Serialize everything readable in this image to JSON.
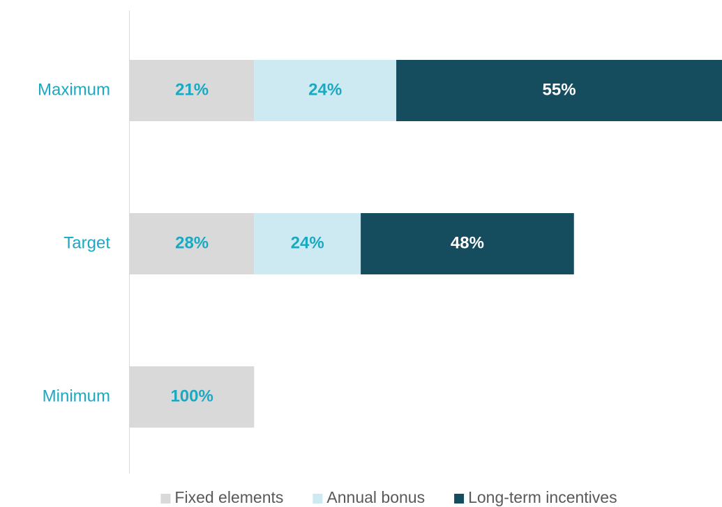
{
  "chart_data": {
    "type": "bar",
    "orientation": "horizontal",
    "stacked": true,
    "categories": [
      "Maximum",
      "Target",
      "Minimum"
    ],
    "series": [
      {
        "name": "Fixed elements",
        "color": "#d9d9d9",
        "values": [
          21,
          28,
          100
        ],
        "value_labels": [
          "21%",
          "28%",
          "100%"
        ]
      },
      {
        "name": "Annual bonus",
        "color": "#cdeaf2",
        "values": [
          24,
          24,
          null
        ],
        "value_labels": [
          "24%",
          "24%",
          null
        ]
      },
      {
        "name": "Long-term incentives",
        "color": "#154c5e",
        "values": [
          55,
          48,
          null
        ],
        "value_labels": [
          "55%",
          "48%",
          null
        ]
      }
    ],
    "legend": "bottom"
  }
}
